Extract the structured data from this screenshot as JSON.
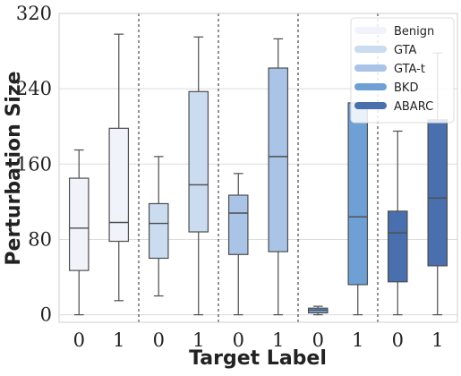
{
  "chart_data": {
    "type": "box",
    "xlabel": "Target Label",
    "ylabel": "Perturbation Size",
    "ylim": [
      -8,
      320
    ],
    "yticks": [
      0,
      80,
      160,
      240,
      320
    ],
    "grid": true,
    "legend_position": "top-right",
    "groups": [
      {
        "name": "Benign",
        "color": "#f1f3fa",
        "boxes": [
          {
            "label": "0",
            "min": 0,
            "q1": 47,
            "median": 92,
            "q3": 145,
            "max": 175
          },
          {
            "label": "1",
            "min": 15,
            "q1": 78,
            "median": 98,
            "q3": 198,
            "max": 298
          }
        ]
      },
      {
        "name": "GTA",
        "color": "#cbdbf0",
        "boxes": [
          {
            "label": "0",
            "min": 20,
            "q1": 60,
            "median": 97,
            "q3": 118,
            "max": 168
          },
          {
            "label": "1",
            "min": 0,
            "q1": 88,
            "median": 138,
            "q3": 237,
            "max": 295
          }
        ]
      },
      {
        "name": "GTA-t",
        "color": "#a9c4e6",
        "boxes": [
          {
            "label": "0",
            "min": 0,
            "q1": 64,
            "median": 108,
            "q3": 127,
            "max": 150
          },
          {
            "label": "1",
            "min": 0,
            "q1": 67,
            "median": 168,
            "q3": 262,
            "max": 293
          }
        ]
      },
      {
        "name": "BKD",
        "color": "#6ea0d6",
        "boxes": [
          {
            "label": "0",
            "min": 0,
            "q1": 2,
            "median": 5,
            "q3": 7,
            "max": 9
          },
          {
            "label": "1",
            "min": 0,
            "q1": 32,
            "median": 104,
            "q3": 225,
            "max": 225
          }
        ]
      },
      {
        "name": "ABARC",
        "color": "#4a6fae",
        "boxes": [
          {
            "label": "0",
            "min": 0,
            "q1": 35,
            "median": 87,
            "q3": 110,
            "max": 195
          },
          {
            "label": "1",
            "min": 0,
            "q1": 52,
            "median": 124,
            "q3": 207,
            "max": 278
          }
        ]
      }
    ]
  }
}
